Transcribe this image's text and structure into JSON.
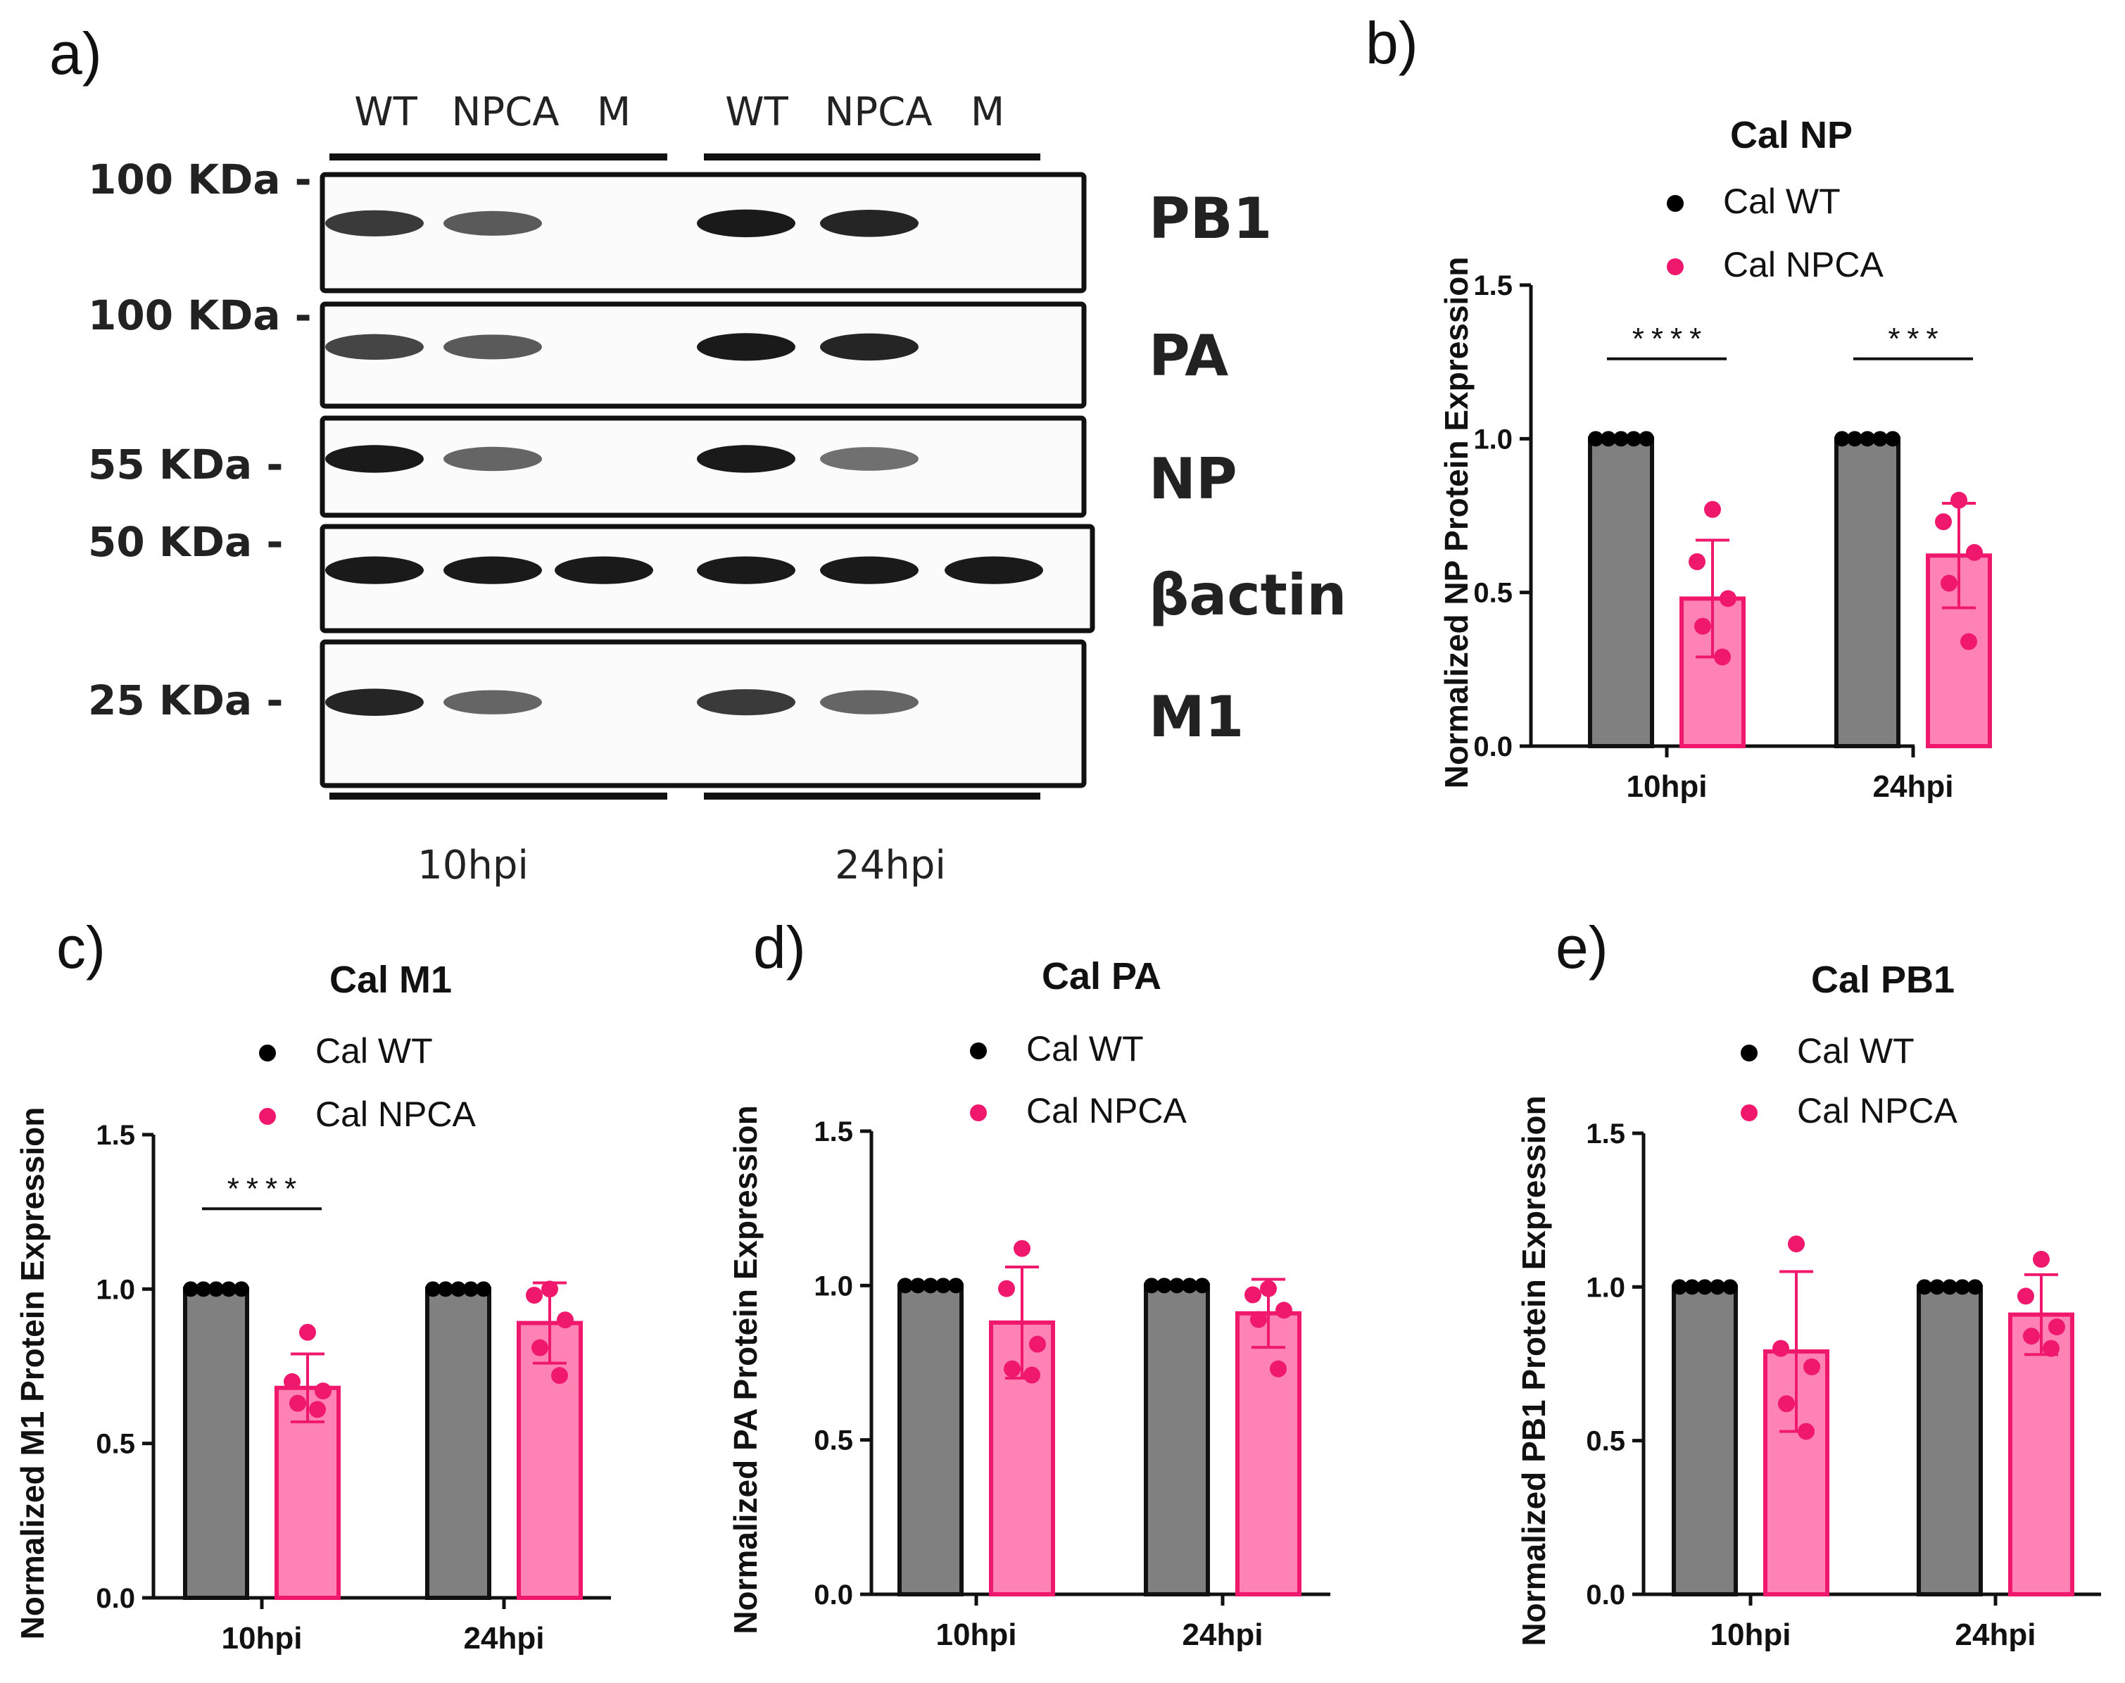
{
  "panel_labels": {
    "a": "a)",
    "b": "b)",
    "c": "c)",
    "d": "d)",
    "e": "e)"
  },
  "blot": {
    "lanes_10": [
      "WT",
      "NPCA",
      "M"
    ],
    "lanes_24": [
      "WT",
      "NPCA",
      "M"
    ],
    "markers": [
      "100 KDa -",
      "100 KDa -",
      "55 KDa -",
      "50 KDa -",
      "25 KDa -"
    ],
    "proteins": [
      "PB1",
      "PA",
      "NP",
      "βactin",
      "M1"
    ],
    "timepoints": [
      "10hpi",
      "24hpi"
    ],
    "band_intensity": [
      [
        0.8,
        0.65,
        0,
        0.95,
        0.9,
        0
      ],
      [
        0.75,
        0.65,
        0,
        0.95,
        0.9,
        0
      ],
      [
        0.95,
        0.6,
        0,
        0.95,
        0.55,
        0
      ],
      [
        0.95,
        0.95,
        0.95,
        0.95,
        0.95,
        0.95
      ],
      [
        0.9,
        0.6,
        0,
        0.8,
        0.6,
        0
      ]
    ]
  },
  "colors": {
    "wt_bar": "#808080",
    "npca_bar": "#ff82b4",
    "npca_edge": "#f0186c",
    "wt_dot": "#000000",
    "npca_dot": "#f0186c"
  },
  "chart_data": [
    {
      "id": "b",
      "type": "bar",
      "title": "Cal NP",
      "ylabel": "Normalized NP Protein Expression",
      "xlabel": "",
      "categories": [
        "10hpi",
        "24hpi"
      ],
      "ylim": [
        0,
        1.5
      ],
      "yticks": [
        "0.0",
        "0.5",
        "1.0",
        "1.5"
      ],
      "legend": [
        "Cal WT",
        "Cal NPCA"
      ],
      "series": [
        {
          "name": "Cal WT",
          "values": [
            1.0,
            1.0
          ],
          "sd": [
            0,
            0
          ],
          "points": [
            [
              1,
              1,
              1,
              1,
              1
            ],
            [
              1,
              1,
              1,
              1,
              1
            ]
          ]
        },
        {
          "name": "Cal NPCA",
          "values": [
            0.48,
            0.62
          ],
          "sd": [
            0.19,
            0.17
          ],
          "points": [
            [
              0.77,
              0.6,
              0.48,
              0.39,
              0.29
            ],
            [
              0.8,
              0.73,
              0.63,
              0.53,
              0.34
            ]
          ]
        }
      ],
      "significance": [
        "****",
        "***"
      ]
    },
    {
      "id": "c",
      "type": "bar",
      "title": "Cal M1",
      "ylabel": "Normalized M1 Protein Expression",
      "xlabel": "",
      "categories": [
        "10hpi",
        "24hpi"
      ],
      "ylim": [
        0,
        1.5
      ],
      "yticks": [
        "0.0",
        "0.5",
        "1.0",
        "1.5"
      ],
      "legend": [
        "Cal WT",
        "Cal NPCA"
      ],
      "series": [
        {
          "name": "Cal WT",
          "values": [
            1.0,
            1.0
          ],
          "sd": [
            0,
            0
          ],
          "points": [
            [
              1,
              1,
              1,
              1,
              1
            ],
            [
              1,
              1,
              1,
              1,
              1
            ]
          ]
        },
        {
          "name": "Cal NPCA",
          "values": [
            0.68,
            0.89
          ],
          "sd": [
            0.11,
            0.13
          ],
          "points": [
            [
              0.86,
              0.7,
              0.67,
              0.63,
              0.61
            ],
            [
              1.0,
              0.98,
              0.9,
              0.81,
              0.72
            ]
          ]
        }
      ],
      "significance": [
        "****",
        ""
      ]
    },
    {
      "id": "d",
      "type": "bar",
      "title": "Cal PA",
      "ylabel": "Normalized PA Protein Expression",
      "xlabel": "",
      "categories": [
        "10hpi",
        "24hpi"
      ],
      "ylim": [
        0,
        1.5
      ],
      "yticks": [
        "0.0",
        "0.5",
        "1.0",
        "1.5"
      ],
      "legend": [
        "Cal WT",
        "Cal NPCA"
      ],
      "series": [
        {
          "name": "Cal WT",
          "values": [
            1.0,
            1.0
          ],
          "sd": [
            0,
            0
          ],
          "points": [
            [
              1,
              1,
              1,
              1,
              1
            ],
            [
              1,
              1,
              1,
              1,
              1
            ]
          ]
        },
        {
          "name": "Cal NPCA",
          "values": [
            0.88,
            0.91
          ],
          "sd": [
            0.18,
            0.11
          ],
          "points": [
            [
              1.12,
              0.99,
              0.81,
              0.73,
              0.71
            ],
            [
              0.99,
              0.97,
              0.92,
              0.89,
              0.73
            ]
          ]
        }
      ],
      "significance": [
        "",
        ""
      ]
    },
    {
      "id": "e",
      "type": "bar",
      "title": "Cal PB1",
      "ylabel": "Normalized PB1 Protein Expression",
      "xlabel": "",
      "categories": [
        "10hpi",
        "24hpi"
      ],
      "ylim": [
        0,
        1.5
      ],
      "yticks": [
        "0.0",
        "0.5",
        "1.0",
        "1.5"
      ],
      "legend": [
        "Cal WT",
        "Cal NPCA"
      ],
      "series": [
        {
          "name": "Cal WT",
          "values": [
            1.0,
            1.0
          ],
          "sd": [
            0,
            0
          ],
          "points": [
            [
              1,
              1,
              1,
              1,
              1
            ],
            [
              1,
              1,
              1,
              1,
              1
            ]
          ]
        },
        {
          "name": "Cal NPCA",
          "values": [
            0.79,
            0.91
          ],
          "sd": [
            0.26,
            0.13
          ],
          "points": [
            [
              1.14,
              0.8,
              0.74,
              0.62,
              0.53
            ],
            [
              1.09,
              0.97,
              0.87,
              0.84,
              0.8
            ]
          ]
        }
      ],
      "significance": [
        "",
        ""
      ]
    }
  ]
}
